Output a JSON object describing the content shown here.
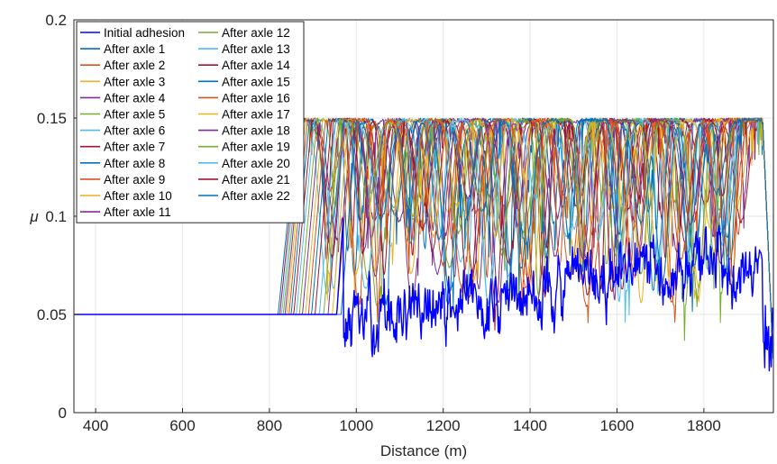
{
  "chart_data": {
    "type": "line",
    "xlabel": "Distance (m)",
    "ylabel": "μ",
    "xlim": [
      350,
      1960
    ],
    "ylim": [
      0,
      0.2
    ],
    "xticks": [
      400,
      600,
      800,
      1000,
      1200,
      1400,
      1600,
      1800
    ],
    "yticks": [
      0,
      0.05,
      0.1,
      0.15,
      0.2
    ],
    "ytick_labels": [
      "0",
      "0.05",
      "0.1",
      "0.15",
      "0.2"
    ],
    "grid": true,
    "legend_position": "top-left",
    "baseline_mu": 0.05,
    "max_mu": 0.15,
    "series": [
      {
        "name": "Initial adhesion",
        "color": "#0000ff",
        "rise_start": 955,
        "low_plateau": true
      },
      {
        "name": "After axle 1",
        "color": "#0072bd",
        "rise_start": 965
      },
      {
        "name": "After axle 2",
        "color": "#d95319",
        "rise_start": 955
      },
      {
        "name": "After axle 3",
        "color": "#edb120",
        "rise_start": 945
      },
      {
        "name": "After axle 4",
        "color": "#7e2f8e",
        "rise_start": 935
      },
      {
        "name": "After axle 5",
        "color": "#77ac30",
        "rise_start": 925
      },
      {
        "name": "After axle 6",
        "color": "#4dbeee",
        "rise_start": 915
      },
      {
        "name": "After axle 7",
        "color": "#a2142f",
        "rise_start": 905
      },
      {
        "name": "After axle 8",
        "color": "#0072bd",
        "rise_start": 897
      },
      {
        "name": "After axle 9",
        "color": "#d95319",
        "rise_start": 890
      },
      {
        "name": "After axle 10",
        "color": "#edb120",
        "rise_start": 883
      },
      {
        "name": "After axle 11",
        "color": "#7e2f8e",
        "rise_start": 876
      },
      {
        "name": "After axle 12",
        "color": "#77ac30",
        "rise_start": 869
      },
      {
        "name": "After axle 13",
        "color": "#4dbeee",
        "rise_start": 862
      },
      {
        "name": "After axle 14",
        "color": "#a2142f",
        "rise_start": 856
      },
      {
        "name": "After axle 15",
        "color": "#0072bd",
        "rise_start": 850
      },
      {
        "name": "After axle 16",
        "color": "#d95319",
        "rise_start": 845
      },
      {
        "name": "After axle 17",
        "color": "#edb120",
        "rise_start": 840
      },
      {
        "name": "After axle 18",
        "color": "#7e2f8e",
        "rise_start": 836
      },
      {
        "name": "After axle 19",
        "color": "#77ac30",
        "rise_start": 832
      },
      {
        "name": "After axle 20",
        "color": "#4dbeee",
        "rise_start": 828
      },
      {
        "name": "After axle 21",
        "color": "#a2142f",
        "rise_start": 824
      },
      {
        "name": "After axle 22",
        "color": "#0072bd",
        "rise_start": 820
      }
    ]
  }
}
